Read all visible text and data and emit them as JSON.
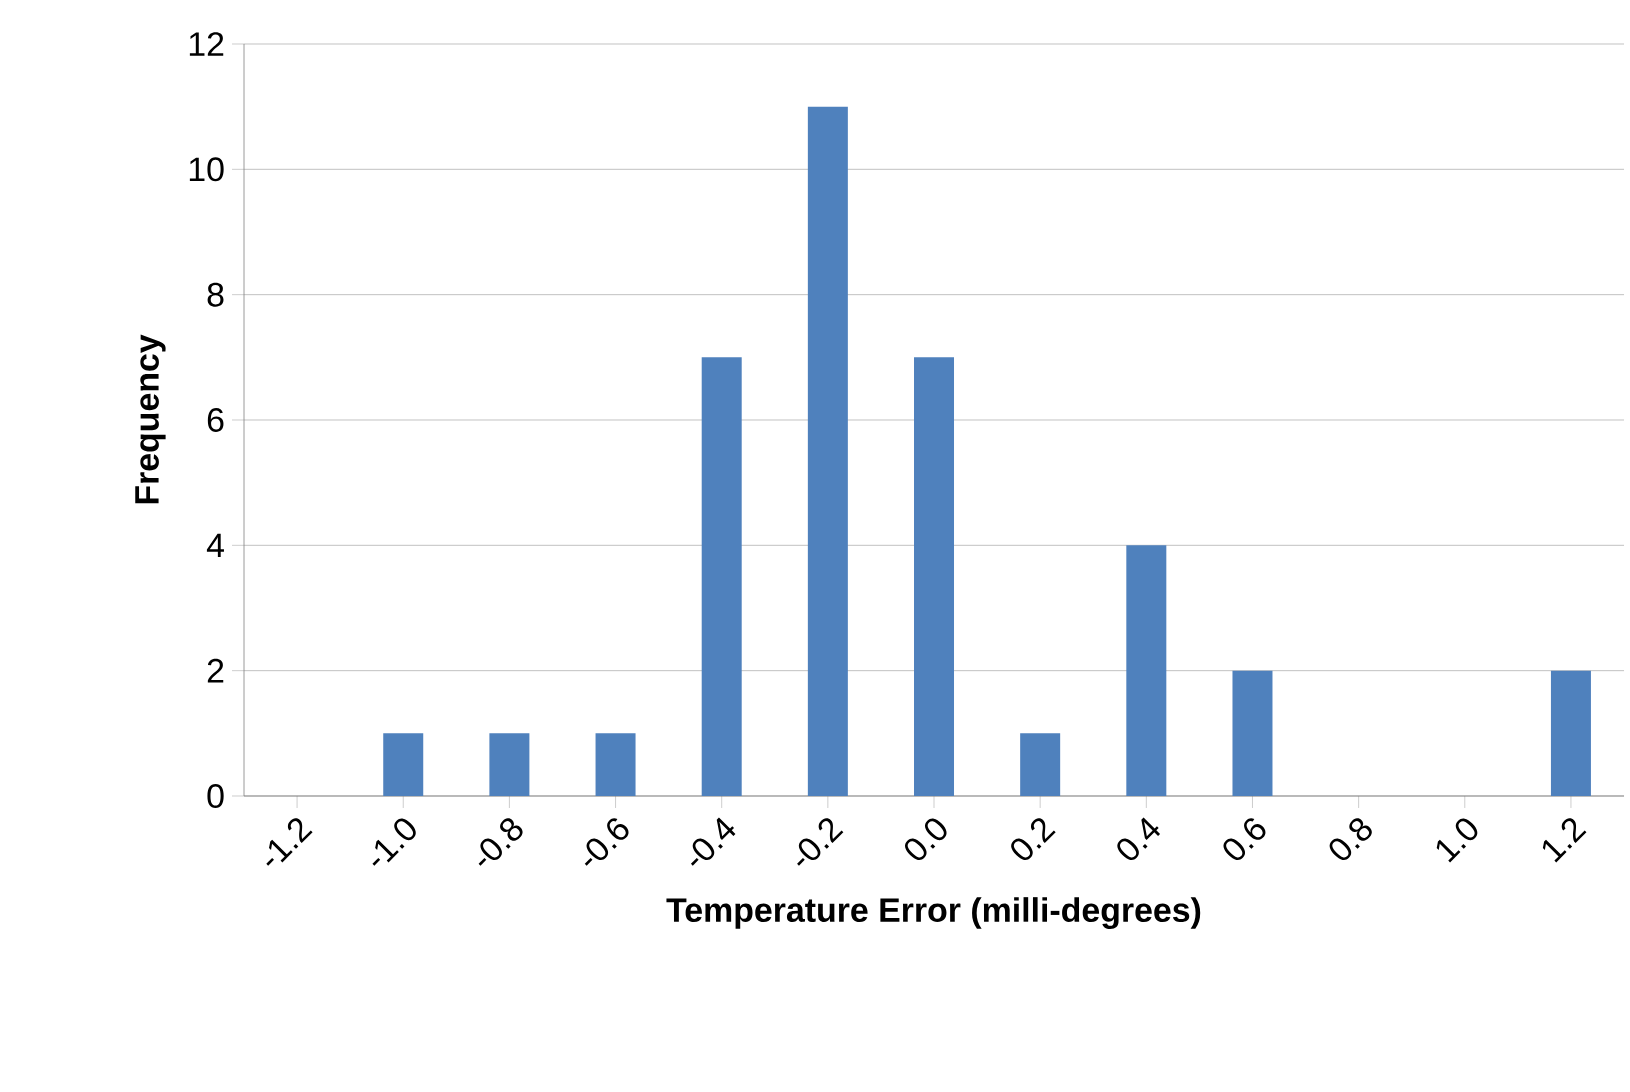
{
  "chart_data": {
    "type": "bar",
    "xlabel": "Temperature Error (milli-degrees)",
    "ylabel": "Frequency",
    "categories": [
      "-1.2",
      "-1.0",
      "-0.8",
      "-0.6",
      "-0.4",
      "-0.2",
      "0.0",
      "0.2",
      "0.4",
      "0.6",
      "0.8",
      "1.0",
      "1.2"
    ],
    "values": [
      0,
      1,
      1,
      1,
      7,
      11,
      7,
      1,
      4,
      2,
      0,
      0,
      2
    ],
    "color": "#4f81bd",
    "ylim": [
      0,
      12
    ],
    "yticks": [
      0,
      2,
      4,
      6,
      8,
      10,
      12
    ],
    "grid": "y"
  }
}
